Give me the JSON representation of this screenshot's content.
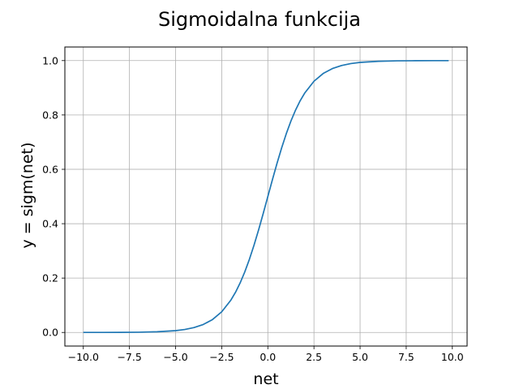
{
  "chart_data": {
    "type": "line",
    "title": "Sigmoidalna funkcija",
    "xlabel": "net",
    "ylabel": "y = sigm(net)",
    "xlim": [
      -11,
      10.8
    ],
    "ylim": [
      -0.05,
      1.05
    ],
    "grid": true,
    "x_ticks": [
      -10.0,
      -7.5,
      -5.0,
      -2.5,
      0.0,
      2.5,
      5.0,
      7.5,
      10.0
    ],
    "x_tick_labels": [
      "−10.0",
      "−7.5",
      "−5.0",
      "−2.5",
      "0.0",
      "2.5",
      "5.0",
      "7.5",
      "10.0"
    ],
    "y_ticks": [
      0.0,
      0.2,
      0.4,
      0.6,
      0.8,
      1.0
    ],
    "y_tick_labels": [
      "0.0",
      "0.2",
      "0.4",
      "0.6",
      "0.8",
      "1.0"
    ],
    "series": [
      {
        "color": "#1f77b4",
        "x": [
          -10,
          -9,
          -8,
          -7,
          -6,
          -5,
          -4.5,
          -4,
          -3.5,
          -3,
          -2.5,
          -2,
          -1.75,
          -1.5,
          -1.25,
          -1,
          -0.75,
          -0.5,
          -0.25,
          0,
          0.25,
          0.5,
          0.75,
          1,
          1.25,
          1.5,
          1.75,
          2,
          2.5,
          3,
          3.5,
          4,
          4.5,
          5,
          6,
          7,
          8,
          9,
          9.8
        ],
        "y": [
          4.54e-05,
          0.000123,
          0.000335,
          0.000911,
          0.00247,
          0.00669,
          0.011,
          0.018,
          0.0293,
          0.0474,
          0.0759,
          0.1192,
          0.148,
          0.1824,
          0.2227,
          0.2689,
          0.3208,
          0.3775,
          0.4378,
          0.5,
          0.5622,
          0.6225,
          0.6792,
          0.7311,
          0.7773,
          0.8176,
          0.852,
          0.8808,
          0.9241,
          0.9526,
          0.9707,
          0.982,
          0.989,
          0.9933,
          0.9975,
          0.9991,
          0.99966,
          0.99988,
          0.99994
        ]
      }
    ]
  }
}
